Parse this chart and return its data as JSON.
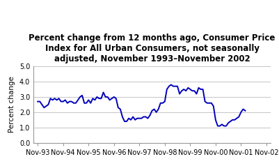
{
  "title": "Percent change from 12 months ago, Consumer Price\nIndex for All Urban Consumers, not seasonally\nadjusted, November 1993–November 2002",
  "ylabel": "Percent change",
  "line_color": "#0000BB",
  "bg_color": "#ffffff",
  "plot_bg_color": "#ffffff",
  "grid_color": "#bbbbbb",
  "ylim": [
    0.0,
    5.0
  ],
  "yticks": [
    0.0,
    1.0,
    2.0,
    3.0,
    4.0,
    5.0
  ],
  "xtick_labels": [
    "Nov-93",
    "Nov-94",
    "Nov-95",
    "Nov-96",
    "Nov-97",
    "Nov-98",
    "Nov-99",
    "Nov-00",
    "Nov-01",
    "Nov-02"
  ],
  "values": [
    2.7,
    2.7,
    2.5,
    2.3,
    2.4,
    2.5,
    2.9,
    2.8,
    2.9,
    2.8,
    2.9,
    2.7,
    2.7,
    2.8,
    2.6,
    2.7,
    2.7,
    2.6,
    2.6,
    2.8,
    3.0,
    3.1,
    2.6,
    2.6,
    2.8,
    2.6,
    2.9,
    2.8,
    3.0,
    2.9,
    2.9,
    3.3,
    3.0,
    3.0,
    2.8,
    2.9,
    3.0,
    2.9,
    2.3,
    2.2,
    1.7,
    1.4,
    1.4,
    1.6,
    1.5,
    1.7,
    1.5,
    1.6,
    1.6,
    1.6,
    1.7,
    1.7,
    1.6,
    1.8,
    2.1,
    2.2,
    2.0,
    2.2,
    2.6,
    2.6,
    2.7,
    3.5,
    3.7,
    3.8,
    3.7,
    3.7,
    3.7,
    3.2,
    3.4,
    3.5,
    3.4,
    3.6,
    3.5,
    3.4,
    3.4,
    3.2,
    3.6,
    3.5,
    3.5,
    2.7,
    2.6,
    2.6,
    2.6,
    2.4,
    1.5,
    1.1,
    1.1,
    1.2,
    1.1,
    1.1,
    1.3,
    1.4,
    1.5,
    1.5,
    1.6,
    1.7,
    2.0,
    2.2,
    2.1
  ],
  "title_fontsize": 8.5,
  "ylabel_fontsize": 7.5,
  "tick_fontsize": 7.0,
  "linewidth": 1.4
}
